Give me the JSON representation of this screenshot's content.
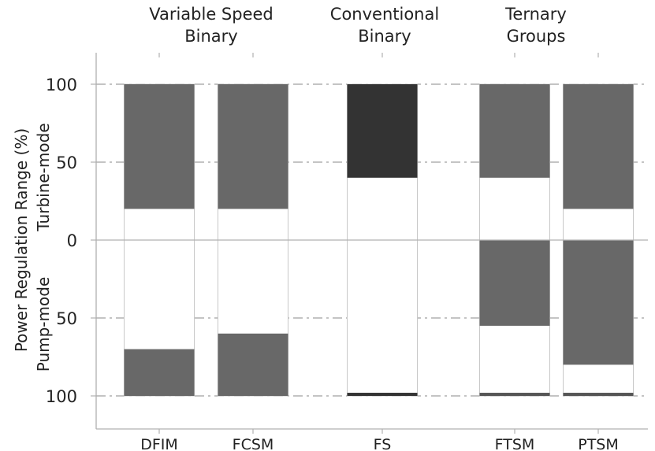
{
  "chart_data": {
    "type": "bar",
    "title": "",
    "ylabel": "Power Regulation Range (%)",
    "ylabel_top": "Turbine-mode",
    "ylabel_bottom": "Pump-mode",
    "groups": [
      {
        "line1": "Variable Speed",
        "line2": "Binary",
        "categories": [
          "DFIM",
          "FCSM"
        ]
      },
      {
        "line1": "Conventional",
        "line2": "Binary",
        "categories": [
          "FS"
        ]
      },
      {
        "line1": "Ternary",
        "line2": "Groups",
        "categories": [
          "FTSM",
          "PTSM"
        ]
      }
    ],
    "categories": [
      "DFIM",
      "FCSM",
      "FS",
      "FTSM",
      "PTSM"
    ],
    "y_tick_labels": [
      "100",
      "50",
      "0",
      "50",
      "100"
    ],
    "y_tick_values": [
      100,
      50,
      0,
      -50,
      -100
    ],
    "ylim": [
      -120,
      120
    ],
    "grid": "dash-dot horizontal",
    "turbine_mode_range": [
      {
        "category": "DFIM",
        "min": 20,
        "max": 100
      },
      {
        "category": "FCSM",
        "min": 20,
        "max": 100
      },
      {
        "category": "FS",
        "min": 40,
        "max": 100
      },
      {
        "category": "FTSM",
        "min": 40,
        "max": 100
      },
      {
        "category": "PTSM",
        "min": 20,
        "max": 100
      }
    ],
    "pump_mode_range": [
      {
        "category": "DFIM",
        "min": 70,
        "max": 100
      },
      {
        "category": "FCSM",
        "min": 60,
        "max": 100
      },
      {
        "category": "FS",
        "min": 98,
        "max": 100
      },
      {
        "category": "FTSM",
        "min": 0,
        "max": 55,
        "point": 98
      },
      {
        "category": "PTSM",
        "min": 0,
        "max": 80,
        "point": 98
      }
    ],
    "colors": {
      "range_fill": "#686868",
      "fs_turbine_fill": "#333333",
      "thin_mark": "#555555",
      "empty_fill": "#ffffff",
      "outline": "#c8c8c8",
      "axis": "#b0b0b0",
      "grid": "#a0a0a0",
      "text": "#222222"
    }
  }
}
